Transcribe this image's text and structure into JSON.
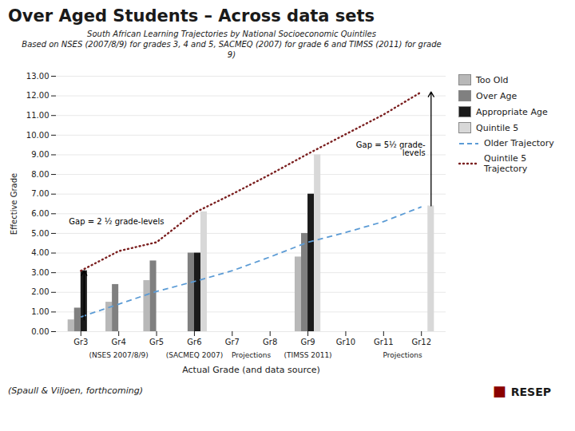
{
  "chart_data": {
    "type": "bar",
    "title": "Over Aged Students – Across data sets",
    "subtitle": [
      "South African Learning Trajectories by National Socioeconomic Quintiles",
      "Based on NSES (2007/8/9)  for grades 3, 4 and 5, SACMEQ (2007) for grade 6 and TIMSS (2011) for grade",
      "9)"
    ],
    "xlabel": "Actual Grade (and data source)",
    "ylabel": "Effective Grade",
    "categories": [
      "Gr3",
      "Gr4",
      "Gr5",
      "Gr6",
      "Gr7",
      "Gr8",
      "Gr9",
      "Gr10",
      "Gr11",
      "Gr12"
    ],
    "series": [
      {
        "name": "Too Old",
        "type": "bar",
        "color": "#b8b8b8",
        "values": [
          0.6,
          1.5,
          2.6,
          null,
          null,
          null,
          3.8,
          null,
          null,
          null
        ]
      },
      {
        "name": "Over Age",
        "type": "bar",
        "color": "#808080",
        "values": [
          1.2,
          2.4,
          3.6,
          4.0,
          null,
          null,
          5.0,
          null,
          null,
          null
        ]
      },
      {
        "name": "Appropriate Age",
        "type": "bar",
        "color": "#1a1a1a",
        "values": [
          3.1,
          null,
          null,
          4.0,
          null,
          null,
          7.0,
          null,
          null,
          null
        ]
      },
      {
        "name": "Quintile 5",
        "type": "bar",
        "color": "#d8d8d8",
        "values": [
          null,
          null,
          null,
          6.1,
          null,
          null,
          9.0,
          null,
          null,
          6.4
        ]
      },
      {
        "name": "Older Trajectory",
        "type": "line",
        "line_style": "dashed",
        "color": "#5b9bd5",
        "values": [
          0.75,
          1.4,
          2.05,
          2.55,
          3.1,
          3.8,
          4.55,
          5.05,
          5.6,
          6.35
        ]
      },
      {
        "name": "Quintile 5 Trajectory",
        "type": "line",
        "line_style": "dotted",
        "color": "#7b2020",
        "values": [
          3.1,
          4.1,
          4.55,
          6.05,
          7.0,
          8.0,
          9.05,
          10.05,
          11.05,
          12.2
        ]
      }
    ],
    "ylim": [
      0,
      13.0
    ],
    "yticks": [
      {
        "value": 0,
        "label": "0.00"
      },
      {
        "value": 1,
        "label": "1.00"
      },
      {
        "value": 2,
        "label": "2.00"
      },
      {
        "value": 3,
        "label": "3.00"
      },
      {
        "value": 4,
        "label": "4.00"
      },
      {
        "value": 5,
        "label": "5.00"
      },
      {
        "value": 6,
        "label": "6.00"
      },
      {
        "value": 7,
        "label": "7.00"
      },
      {
        "value": 8,
        "label": "8.00"
      },
      {
        "value": 9,
        "label": "9.00"
      },
      {
        "value": 10,
        "label": "10.00"
      },
      {
        "value": 11,
        "label": "11.00"
      },
      {
        "value": 12,
        "label": "12.00"
      },
      {
        "value": 13,
        "label": "13.00"
      }
    ],
    "grid": true,
    "legend": "upper right",
    "annotations": [
      {
        "text": "Gap = 2 ½ grade-levels",
        "category": "Gr3",
        "series": "Appropriate Age",
        "from": 0.6,
        "to": 3.1
      },
      {
        "text": "Gap = 5½ grade-\nlevels",
        "category": "Gr12",
        "series": "Quintile 5",
        "from": 6.4,
        "to": 12.2
      }
    ],
    "sources": [
      {
        "text": "(NSES 2007/8/9)",
        "categories": [
          "Gr4"
        ]
      },
      {
        "text": "(SACMEQ 2007)",
        "categories": [
          "Gr6"
        ]
      },
      {
        "text": "Projections",
        "categories": [
          "Gr7",
          "Gr8"
        ]
      },
      {
        "text": "(TIMSS 2011)",
        "categories": [
          "Gr9"
        ]
      },
      {
        "text": "Projections",
        "categories": [
          "Gr11",
          "Gr12"
        ]
      }
    ],
    "footer": "(Spaull & Viljoen, forthcoming)",
    "logo": {
      "text": "RESEP",
      "symbol": "■",
      "color": "#8B0000"
    }
  }
}
